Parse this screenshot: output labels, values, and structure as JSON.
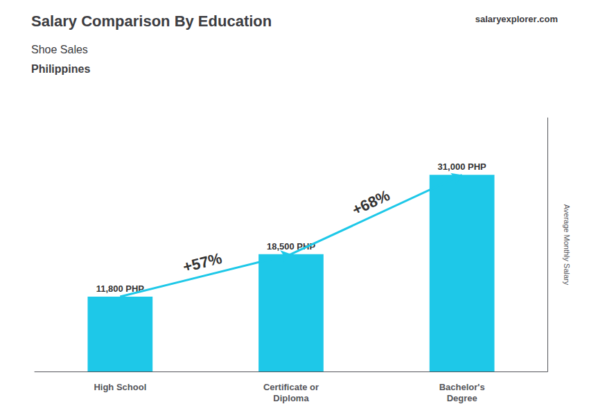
{
  "chart_data": {
    "type": "bar",
    "title": "Salary Comparison By Education",
    "subtitle": [
      "Shoe Sales",
      "Philippines"
    ],
    "watermark": [
      "salary",
      "explorer",
      ".com"
    ],
    "ylabel": "Average Monthly Salary",
    "categories": [
      "High School",
      "Certificate or\nDiploma",
      "Bachelor's\nDegree"
    ],
    "values": [
      11800,
      18500,
      31000
    ],
    "value_labels": [
      "11,800 PHP",
      "18,500 PHP",
      "31,000 PHP"
    ],
    "data_labels": true,
    "annotations": [
      "+57%",
      "+68%"
    ],
    "color": "#1ec8e8",
    "ylim": [
      0,
      40000
    ],
    "yticks": [],
    "tick_labels": "x",
    "grid": false
  }
}
